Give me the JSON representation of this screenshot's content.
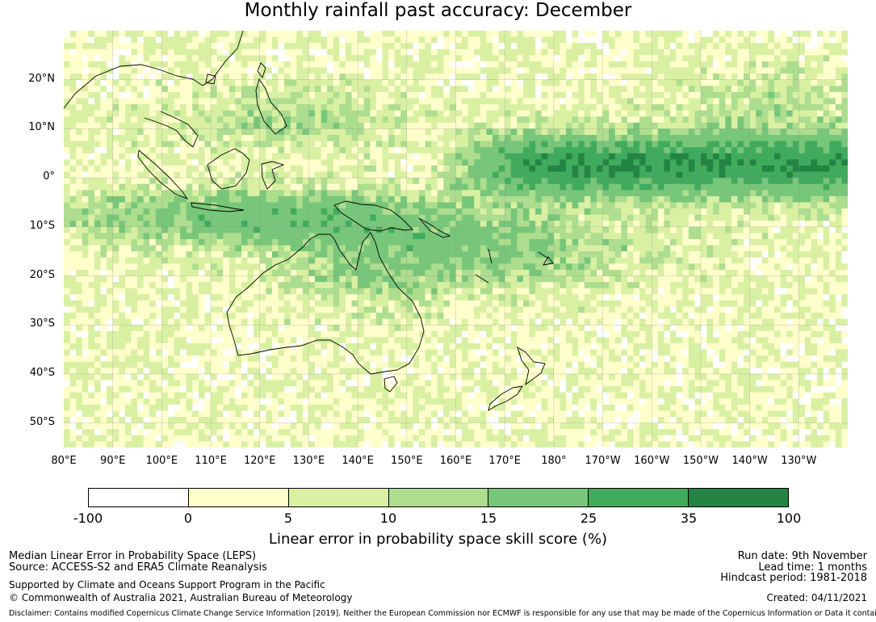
{
  "title": "Monthly rainfall past accuracy: December",
  "map": {
    "extent": {
      "lon_min": 80,
      "lon_max": 240,
      "lat_min": -55,
      "lat_max": 30
    },
    "lat_labels": [
      "20°N",
      "10°N",
      "0°",
      "10°S",
      "20°S",
      "30°S",
      "40°S",
      "50°S"
    ],
    "lon_labels": [
      "80°E",
      "90°E",
      "100°E",
      "110°E",
      "120°E",
      "130°E",
      "140°E",
      "150°E",
      "160°E",
      "170°E",
      "180°",
      "170°W",
      "160°W",
      "150°W",
      "140°W",
      "130°W"
    ],
    "coastline_color": "#000000",
    "gridline_color": "#8a8a8a"
  },
  "colorbar": {
    "label": "Linear error in probability space skill score (%)",
    "ticks": [
      "-100",
      "0",
      "5",
      "10",
      "15",
      "25",
      "35",
      "100"
    ],
    "colors": [
      "#ffffff",
      "#ffffcc",
      "#d9f0a3",
      "#addd8e",
      "#78c679",
      "#41ab5d",
      "#238443"
    ]
  },
  "footer": {
    "line1": "Median Linear Error in Probability Space (LEPS)",
    "line2": "Source: ACCESS-S2 and ERA5 Climate Reanalysis",
    "line3": "Supported by Climate and Oceans Support Program in the Pacific",
    "line4": "© Commonwealth of Australia 2021, Australian Bureau of Meteorology",
    "run_date": "Run date: 9th November",
    "lead_time": "Lead time: 1 months",
    "hindcast": "Hindcast period: 1981-2018",
    "created": "Created: 04/11/2021",
    "disclaimer": "Disclaimer: Contains modified Copernicus Climate Change Service Information [2019]. Neither the European Commission nor ECMWF is responsible for any use that may be made of the Copernicus Information or Data it contains."
  }
}
